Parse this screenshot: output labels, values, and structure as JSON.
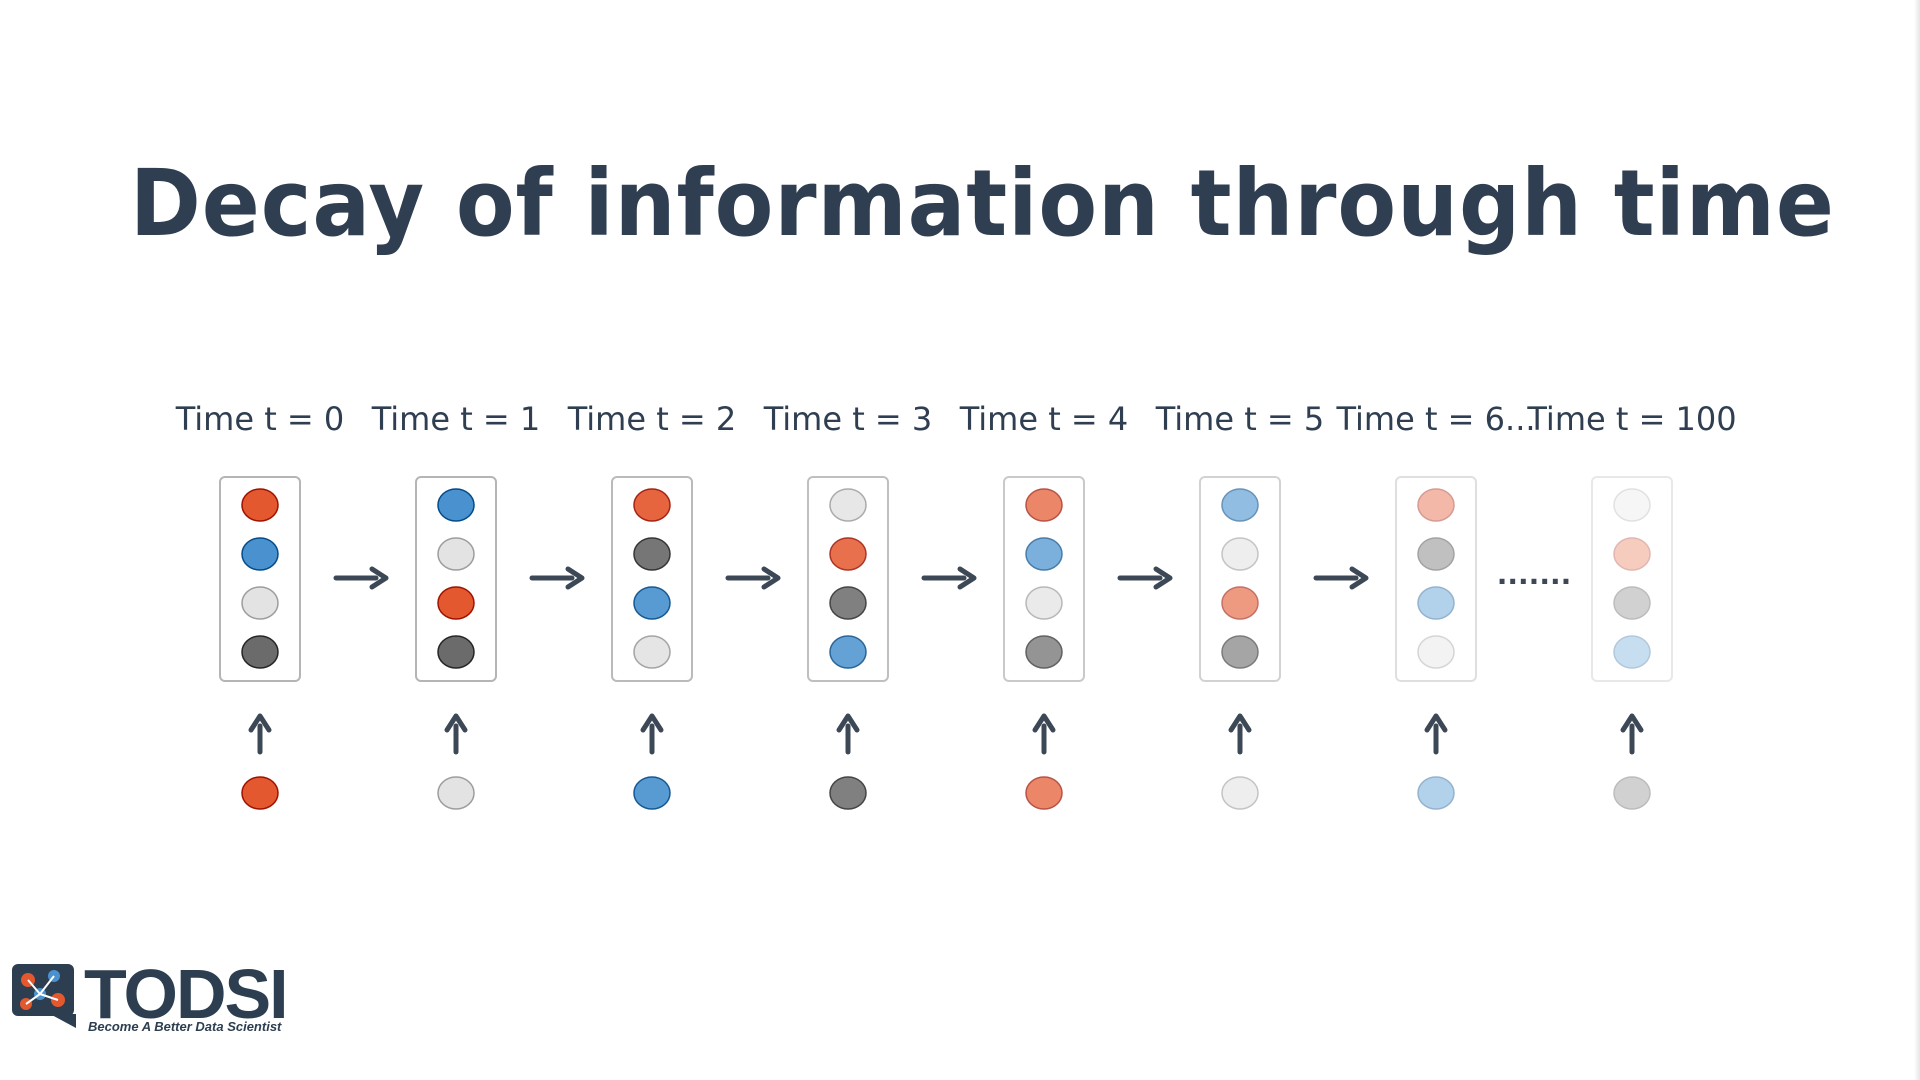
{
  "title": "Decay of information through time",
  "steps": [
    {
      "label": "Time t = 0",
      "cells": [
        "#e4582f",
        "#4a92cf",
        "#e3e3e3",
        "#6b6b6b"
      ],
      "input": "#e4582f",
      "opacity": 1.0
    },
    {
      "label": "Time t = 1",
      "cells": [
        "#4a92cf",
        "#e3e3e3",
        "#e4582f",
        "#6b6b6b"
      ],
      "input": "#e3e3e3",
      "opacity": 1.0
    },
    {
      "label": "Time t = 2",
      "cells": [
        "#e4582f",
        "#6b6b6b",
        "#4a92cf",
        "#e3e3e3"
      ],
      "input": "#4a92cf",
      "opacity": 0.92
    },
    {
      "label": "Time t = 3",
      "cells": [
        "#e3e3e3",
        "#e4582f",
        "#6b6b6b",
        "#4a92cf"
      ],
      "input": "#6b6b6b",
      "opacity": 0.85
    },
    {
      "label": "Time t = 4",
      "cells": [
        "#e4582f",
        "#4a92cf",
        "#e3e3e3",
        "#6b6b6b"
      ],
      "input": "#e4582f",
      "opacity": 0.72
    },
    {
      "label": "Time t = 5",
      "cells": [
        "#4a92cf",
        "#e3e3e3",
        "#e4582f",
        "#6b6b6b"
      ],
      "input": "#e3e3e3",
      "opacity": 0.6
    },
    {
      "label": "Time t = 6...",
      "cells": [
        "#e4582f",
        "#6b6b6b",
        "#4a92cf",
        "#e3e3e3"
      ],
      "input": "#4a92cf",
      "opacity": 0.42
    },
    {
      "label": "Time t = 100",
      "cells": [
        "#e3e3e3",
        "#e4582f",
        "#6b6b6b",
        "#4a92cf"
      ],
      "input": "#6b6b6b",
      "opacity": 0.3
    }
  ],
  "ellipsis": ".......",
  "logo": {
    "name": "TODSI",
    "tagline": "Become A Better Data Scientist"
  },
  "colors": {
    "text": "#2f3e50",
    "arrow": "#3d4856",
    "box_border": "#b5b5b5"
  }
}
